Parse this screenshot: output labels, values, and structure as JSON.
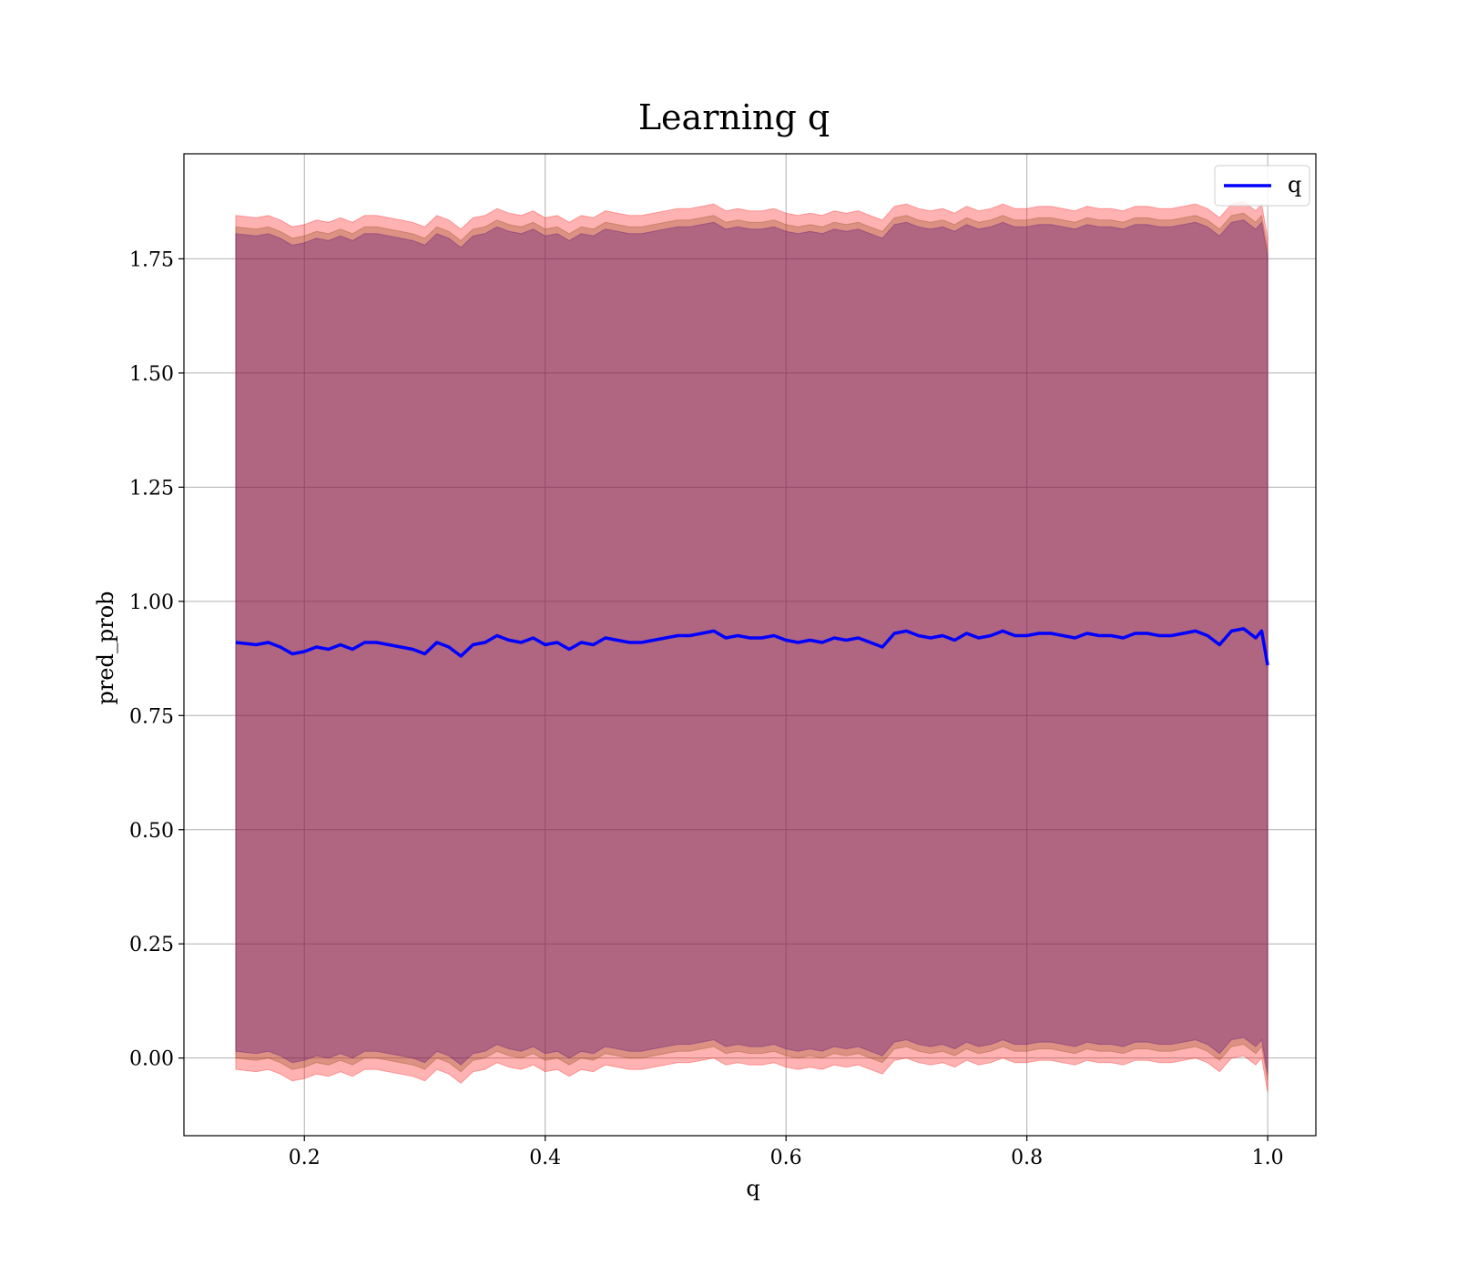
{
  "chart_data": {
    "type": "line",
    "title": "Learning q",
    "xlabel": "q",
    "ylabel": "pred_prob",
    "xlim": [
      0.1,
      1.04
    ],
    "ylim": [
      -0.17,
      1.98
    ],
    "xticks": [
      0.2,
      0.4,
      0.6,
      0.8,
      1.0
    ],
    "xtick_labels": [
      "0.2",
      "0.4",
      "0.6",
      "0.8",
      "1.0"
    ],
    "yticks": [
      0.0,
      0.25,
      0.5,
      0.75,
      1.0,
      1.25,
      1.5,
      1.75
    ],
    "ytick_labels": [
      "0.00",
      "0.25",
      "0.50",
      "0.75",
      "1.00",
      "1.25",
      "1.50",
      "1.75"
    ],
    "grid": true,
    "legend": {
      "position": "upper right",
      "entries": [
        "q"
      ]
    },
    "series": [
      {
        "name": "q",
        "color": "#0000ff",
        "x": [
          0.143,
          0.16,
          0.17,
          0.18,
          0.19,
          0.2,
          0.21,
          0.22,
          0.23,
          0.24,
          0.25,
          0.26,
          0.27,
          0.28,
          0.29,
          0.3,
          0.31,
          0.32,
          0.33,
          0.34,
          0.35,
          0.36,
          0.37,
          0.38,
          0.39,
          0.4,
          0.41,
          0.42,
          0.43,
          0.44,
          0.45,
          0.46,
          0.47,
          0.48,
          0.49,
          0.5,
          0.51,
          0.52,
          0.53,
          0.54,
          0.55,
          0.56,
          0.57,
          0.58,
          0.59,
          0.6,
          0.61,
          0.62,
          0.63,
          0.64,
          0.65,
          0.66,
          0.67,
          0.68,
          0.69,
          0.7,
          0.71,
          0.72,
          0.73,
          0.74,
          0.75,
          0.76,
          0.77,
          0.78,
          0.79,
          0.8,
          0.81,
          0.82,
          0.83,
          0.84,
          0.85,
          0.86,
          0.87,
          0.88,
          0.89,
          0.9,
          0.91,
          0.92,
          0.93,
          0.94,
          0.95,
          0.96,
          0.97,
          0.98,
          0.99,
          0.995,
          1.0
        ],
        "y": [
          0.91,
          0.905,
          0.91,
          0.9,
          0.885,
          0.89,
          0.9,
          0.895,
          0.905,
          0.895,
          0.91,
          0.91,
          0.905,
          0.9,
          0.895,
          0.885,
          0.91,
          0.9,
          0.88,
          0.905,
          0.91,
          0.925,
          0.915,
          0.91,
          0.92,
          0.905,
          0.91,
          0.895,
          0.91,
          0.905,
          0.92,
          0.915,
          0.91,
          0.91,
          0.915,
          0.92,
          0.925,
          0.925,
          0.93,
          0.935,
          0.92,
          0.925,
          0.92,
          0.92,
          0.925,
          0.915,
          0.91,
          0.915,
          0.91,
          0.92,
          0.915,
          0.92,
          0.91,
          0.9,
          0.93,
          0.935,
          0.925,
          0.92,
          0.925,
          0.915,
          0.93,
          0.92,
          0.925,
          0.935,
          0.925,
          0.925,
          0.93,
          0.93,
          0.925,
          0.92,
          0.93,
          0.925,
          0.925,
          0.92,
          0.93,
          0.93,
          0.925,
          0.925,
          0.93,
          0.935,
          0.925,
          0.905,
          0.935,
          0.94,
          0.92,
          0.935,
          0.86
        ]
      }
    ],
    "bands": [
      {
        "color": "#ff0000",
        "alpha": 0.3,
        "upper_offset": 0.935,
        "lower_offset": -0.935
      },
      {
        "color": "#8b4513",
        "alpha": 0.3,
        "upper_offset": 0.91,
        "lower_offset": -0.91
      },
      {
        "color": "#4b0082",
        "alpha": 0.3,
        "upper_offset": 0.895,
        "lower_offset": -0.895
      }
    ]
  }
}
